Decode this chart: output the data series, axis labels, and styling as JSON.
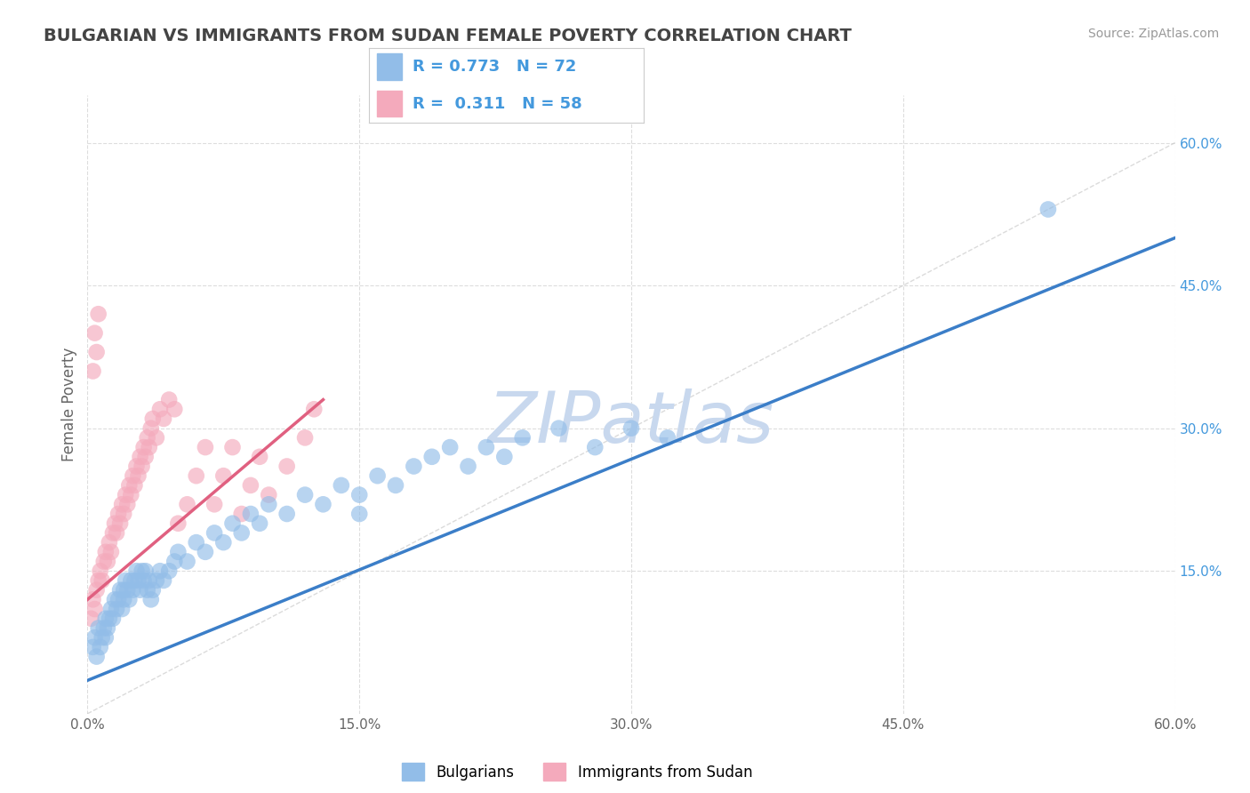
{
  "title": "BULGARIAN VS IMMIGRANTS FROM SUDAN FEMALE POVERTY CORRELATION CHART",
  "source": "Source: ZipAtlas.com",
  "ylabel": "Female Poverty",
  "xlim": [
    0,
    0.6
  ],
  "ylim": [
    0,
    0.65
  ],
  "xticks": [
    0.0,
    0.15,
    0.3,
    0.45,
    0.6
  ],
  "yticks": [
    0.15,
    0.3,
    0.45,
    0.6
  ],
  "blue_R": 0.773,
  "blue_N": 72,
  "pink_R": 0.311,
  "pink_N": 58,
  "blue_color": "#92BDE8",
  "pink_color": "#F4AABC",
  "blue_line_color": "#3B7EC8",
  "pink_line_color": "#E06080",
  "ref_line_color": "#CCCCCC",
  "watermark": "ZIPatlas",
  "watermark_color": "#C8D8EE",
  "legend_label_blue": "Bulgarians",
  "legend_label_pink": "Immigrants from Sudan",
  "background_color": "#FFFFFF",
  "grid_color": "#DDDDDD",
  "title_color": "#444444",
  "axis_label_color": "#666666",
  "tick_color_x": "#666666",
  "tick_color_right": "#4499DD",
  "blue_scatter_x": [
    0.003,
    0.004,
    0.005,
    0.006,
    0.007,
    0.008,
    0.009,
    0.01,
    0.01,
    0.011,
    0.012,
    0.013,
    0.014,
    0.015,
    0.016,
    0.017,
    0.018,
    0.019,
    0.02,
    0.02,
    0.021,
    0.022,
    0.023,
    0.024,
    0.025,
    0.026,
    0.027,
    0.028,
    0.029,
    0.03,
    0.031,
    0.032,
    0.033,
    0.034,
    0.035,
    0.036,
    0.038,
    0.04,
    0.042,
    0.045,
    0.048,
    0.05,
    0.055,
    0.06,
    0.065,
    0.07,
    0.075,
    0.08,
    0.085,
    0.09,
    0.095,
    0.1,
    0.11,
    0.12,
    0.13,
    0.14,
    0.15,
    0.16,
    0.17,
    0.18,
    0.19,
    0.2,
    0.21,
    0.22,
    0.23,
    0.24,
    0.26,
    0.28,
    0.3,
    0.32,
    0.53,
    0.15
  ],
  "blue_scatter_y": [
    0.07,
    0.08,
    0.06,
    0.09,
    0.07,
    0.08,
    0.09,
    0.1,
    0.08,
    0.09,
    0.1,
    0.11,
    0.1,
    0.12,
    0.11,
    0.12,
    0.13,
    0.11,
    0.12,
    0.13,
    0.14,
    0.13,
    0.12,
    0.14,
    0.13,
    0.14,
    0.15,
    0.14,
    0.13,
    0.15,
    0.14,
    0.15,
    0.13,
    0.14,
    0.12,
    0.13,
    0.14,
    0.15,
    0.14,
    0.15,
    0.16,
    0.17,
    0.16,
    0.18,
    0.17,
    0.19,
    0.18,
    0.2,
    0.19,
    0.21,
    0.2,
    0.22,
    0.21,
    0.23,
    0.22,
    0.24,
    0.23,
    0.25,
    0.24,
    0.26,
    0.27,
    0.28,
    0.26,
    0.28,
    0.27,
    0.29,
    0.3,
    0.28,
    0.3,
    0.29,
    0.53,
    0.21
  ],
  "pink_scatter_x": [
    0.002,
    0.003,
    0.004,
    0.005,
    0.006,
    0.007,
    0.008,
    0.009,
    0.01,
    0.011,
    0.012,
    0.013,
    0.014,
    0.015,
    0.016,
    0.017,
    0.018,
    0.019,
    0.02,
    0.021,
    0.022,
    0.023,
    0.024,
    0.025,
    0.026,
    0.027,
    0.028,
    0.029,
    0.03,
    0.031,
    0.032,
    0.033,
    0.034,
    0.035,
    0.036,
    0.038,
    0.04,
    0.042,
    0.045,
    0.048,
    0.05,
    0.055,
    0.06,
    0.065,
    0.07,
    0.075,
    0.08,
    0.085,
    0.09,
    0.095,
    0.1,
    0.11,
    0.12,
    0.125,
    0.003,
    0.004,
    0.005,
    0.006
  ],
  "pink_scatter_y": [
    0.1,
    0.12,
    0.11,
    0.13,
    0.14,
    0.15,
    0.14,
    0.16,
    0.17,
    0.16,
    0.18,
    0.17,
    0.19,
    0.2,
    0.19,
    0.21,
    0.2,
    0.22,
    0.21,
    0.23,
    0.22,
    0.24,
    0.23,
    0.25,
    0.24,
    0.26,
    0.25,
    0.27,
    0.26,
    0.28,
    0.27,
    0.29,
    0.28,
    0.3,
    0.31,
    0.29,
    0.32,
    0.31,
    0.33,
    0.32,
    0.2,
    0.22,
    0.25,
    0.28,
    0.22,
    0.25,
    0.28,
    0.21,
    0.24,
    0.27,
    0.23,
    0.26,
    0.29,
    0.32,
    0.36,
    0.4,
    0.38,
    0.42
  ],
  "blue_line_x": [
    0.0,
    0.6
  ],
  "blue_line_y": [
    0.035,
    0.5
  ],
  "pink_line_x": [
    0.0,
    0.13
  ],
  "pink_line_y": [
    0.12,
    0.33
  ]
}
